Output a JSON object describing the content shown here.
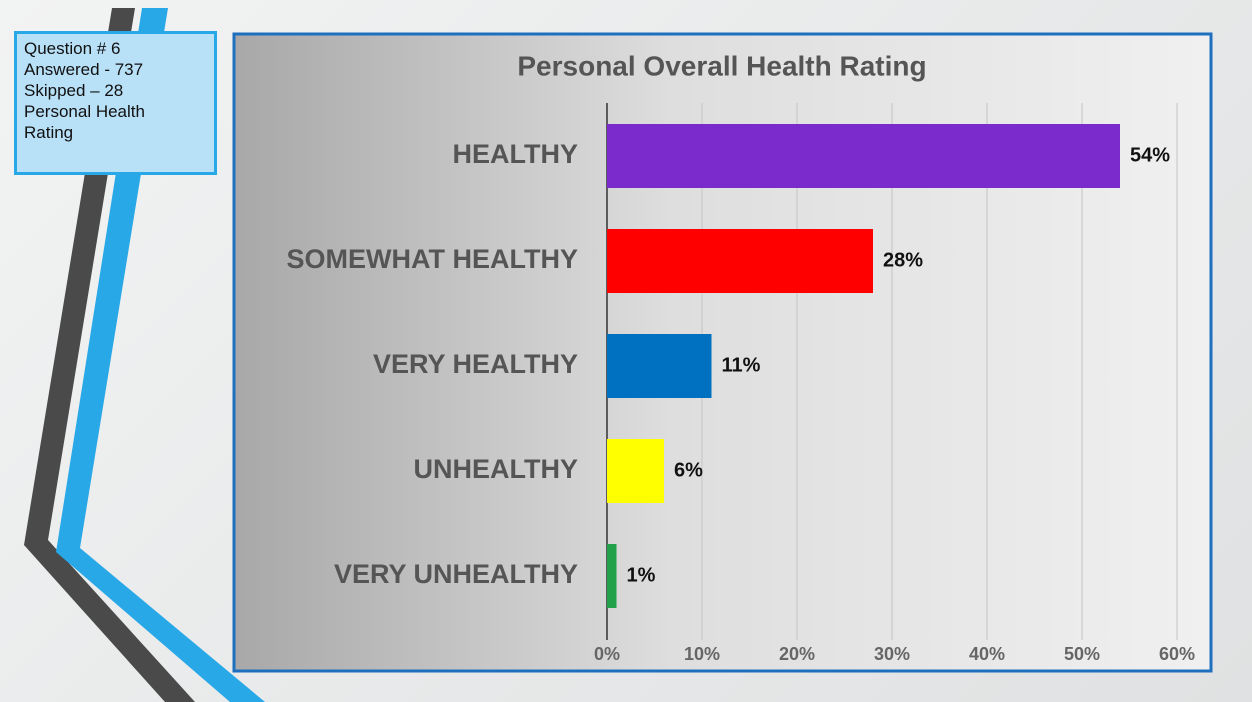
{
  "info_box": {
    "lines": [
      "Question # 6",
      "Answered - 737",
      "Skipped – 28",
      "Personal Health Rating"
    ]
  },
  "chart_data": {
    "type": "hbar",
    "title": "Personal Overall Health Rating",
    "categories": [
      "HEALTHY",
      "SOMEWHAT HEALTHY",
      "VERY HEALTHY",
      "UNHEALTHY",
      "VERY UNHEALTHY"
    ],
    "values": [
      54,
      28,
      11,
      6,
      1
    ],
    "value_labels": [
      "54%",
      "28%",
      "11%",
      "6%",
      "1%"
    ],
    "colors": [
      "#7b2bcc",
      "#ff0000",
      "#0070c0",
      "#ffff00",
      "#22a04a"
    ],
    "xlim": [
      0,
      60
    ],
    "xticks": [
      {
        "value": 0,
        "label": "0%"
      },
      {
        "value": 10,
        "label": "10%"
      },
      {
        "value": 20,
        "label": "20%"
      },
      {
        "value": 30,
        "label": "30%"
      },
      {
        "value": 40,
        "label": "40%"
      },
      {
        "value": 50,
        "label": "50%"
      },
      {
        "value": 60,
        "label": "60%"
      }
    ],
    "grid": true
  }
}
